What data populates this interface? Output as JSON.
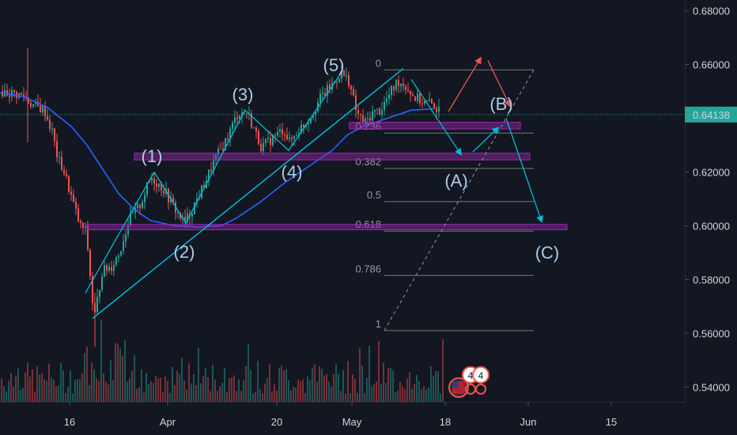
{
  "chart_data": {
    "type": "candlestick",
    "y_ticks": [
      "0.68000",
      "0.66000",
      "0.64000",
      "0.62000",
      "0.60000",
      "0.58000",
      "0.56000",
      "0.54000"
    ],
    "y_tick_values": [
      0.68,
      0.66,
      0.64,
      0.62,
      0.6,
      0.58,
      0.56,
      0.54
    ],
    "ylim": [
      0.5345,
      0.684
    ],
    "x_ticks": [
      "16",
      "Apr",
      "20",
      "May",
      "18",
      "Jun",
      "15"
    ],
    "last_price": "0.64138",
    "last_price_value": 0.64138,
    "fib_levels": [
      {
        "label": "0",
        "value": 0.658
      },
      {
        "label": "0.236",
        "value": 0.6345
      },
      {
        "label": "0.382",
        "value": 0.6213
      },
      {
        "label": "0.5",
        "value": 0.609
      },
      {
        "label": "0.618",
        "value": 0.598
      },
      {
        "label": "0.786",
        "value": 0.5815
      },
      {
        "label": "1",
        "value": 0.561
      }
    ],
    "wave_labels": [
      "(1)",
      "(2)",
      "(3)",
      "(4)",
      "(5)",
      "(A)",
      "(B)",
      "(C)"
    ],
    "zones": [
      {
        "low": 0.636,
        "high": 0.6385
      },
      {
        "low": 0.6245,
        "high": 0.627
      },
      {
        "low": 0.5985,
        "high": 0.6005
      }
    ],
    "colors": {
      "background": "#131722",
      "up": "#26a69a",
      "down": "#ef5350",
      "ma": "#2962ff",
      "trend": "#00bcd4",
      "zone": "#9c27b0",
      "badge": "#ef5350"
    }
  },
  "badges": [
    "4",
    "4"
  ]
}
